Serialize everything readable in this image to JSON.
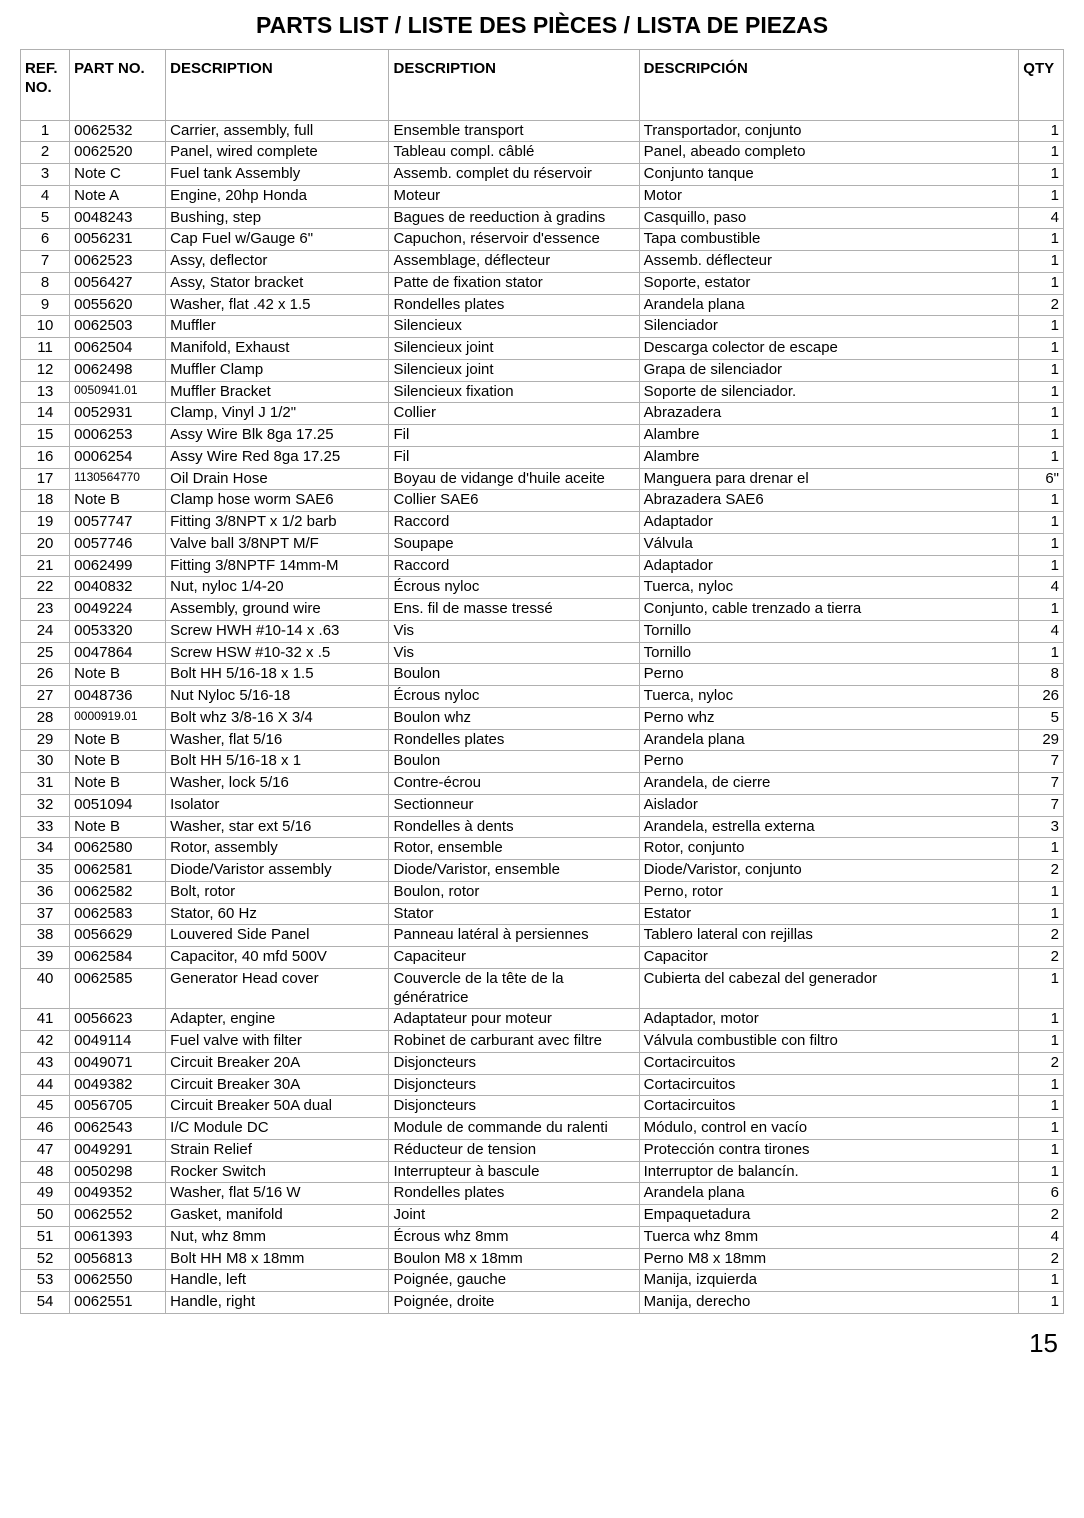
{
  "title": "PARTS LIST / LISTE DES PIÈCES / LISTA DE PIEZAS",
  "page_number": "15",
  "columns": [
    "REF. NO.",
    "PART NO.",
    "DESCRIPTION",
    "DESCRIPTION",
    "DESCRIPCIÓN",
    "QTY"
  ],
  "rows": [
    {
      "ref": "1",
      "part": "0062532",
      "d1": "Carrier, assembly, full",
      "d2": "Ensemble transport",
      "d3": "Transportador, conjunto",
      "qty": "1"
    },
    {
      "ref": "2",
      "part": "0062520",
      "d1": "Panel, wired complete",
      "d2": "Tableau compl. câblé",
      "d3": "Panel, abeado completo",
      "qty": "1"
    },
    {
      "ref": "3",
      "part": "Note C",
      "d1": "Fuel tank Assembly",
      "d2": "Assemb. complet du réservoir",
      "d3": "Conjunto tanque",
      "qty": "1"
    },
    {
      "ref": "4",
      "part": "Note A",
      "d1": "Engine, 20hp Honda",
      "d2": "Moteur",
      "d3": "Motor",
      "qty": "1"
    },
    {
      "ref": "5",
      "part": "0048243",
      "d1": "Bushing, step",
      "d2": "Bagues de reeduction à gradins",
      "d3": "Casquillo, paso",
      "qty": "4"
    },
    {
      "ref": "6",
      "part": "0056231",
      "d1": "Cap Fuel w/Gauge 6\"",
      "d2": "Capuchon, réservoir d'essence",
      "d3": "Tapa combustible",
      "qty": "1"
    },
    {
      "ref": "7",
      "part": "0062523",
      "d1": "Assy, deflector",
      "d2": "Assemblage, déflecteur",
      "d3": "Assemb. déflecteur",
      "qty": "1"
    },
    {
      "ref": "8",
      "part": "0056427",
      "d1": "Assy, Stator bracket",
      "d2": "Patte de fixation stator",
      "d3": "Soporte, estator",
      "qty": "1"
    },
    {
      "ref": "9",
      "part": "0055620",
      "d1": "Washer, flat .42 x 1.5",
      "d2": "Rondelles plates",
      "d3": "Arandela plana",
      "qty": "2"
    },
    {
      "ref": "10",
      "part": "0062503",
      "d1": "Muffler",
      "d2": "Silencieux",
      "d3": "Silenciador",
      "qty": "1"
    },
    {
      "ref": "11",
      "part": "0062504",
      "d1": "Manifold, Exhaust",
      "d2": "Silencieux joint",
      "d3": "Descarga colector de escape",
      "qty": "1"
    },
    {
      "ref": "12",
      "part": "0062498",
      "d1": "Muffler Clamp",
      "d2": "Silencieux joint",
      "d3": "Grapa de silenciador",
      "qty": "1"
    },
    {
      "ref": "13",
      "part": "0050941.01",
      "part_small": true,
      "d1": "Muffler Bracket",
      "d2": "Silencieux fixation",
      "d3": "Soporte de silenciador.",
      "qty": "1"
    },
    {
      "ref": "14",
      "part": "0052931",
      "d1": "Clamp, Vinyl J 1/2\"",
      "d2": "Collier",
      "d3": "Abrazadera",
      "qty": "1"
    },
    {
      "ref": "15",
      "part": "0006253",
      "d1": "Assy Wire Blk 8ga 17.25",
      "d2": "Fil",
      "d3": "Alambre",
      "qty": "1"
    },
    {
      "ref": "16",
      "part": "0006254",
      "d1": "Assy Wire Red 8ga 17.25",
      "d2": "Fil",
      "d3": "Alambre",
      "qty": "1"
    },
    {
      "ref": "17",
      "part": "1130564770",
      "part_small": true,
      "d1": "Oil Drain Hose",
      "d2": "Boyau de vidange d'huile aceite",
      "d3": "Manguera para drenar el",
      "qty": "6\""
    },
    {
      "ref": "18",
      "part": "Note B",
      "d1": "Clamp hose worm SAE6",
      "d2": "Collier SAE6",
      "d3": "Abrazadera SAE6",
      "qty": "1"
    },
    {
      "ref": "19",
      "part": "0057747",
      "d1": "Fitting 3/8NPT x 1/2 barb",
      "d2": "Raccord",
      "d3": "Adaptador",
      "qty": "1"
    },
    {
      "ref": "20",
      "part": "0057746",
      "d1": "Valve ball 3/8NPT M/F",
      "d2": "Soupape",
      "d3": "Válvula",
      "qty": "1"
    },
    {
      "ref": "21",
      "part": "0062499",
      "d1": "Fitting 3/8NPTF 14mm-M",
      "d2": "Raccord",
      "d3": "Adaptador",
      "qty": "1"
    },
    {
      "ref": "22",
      "part": "0040832",
      "d1": "Nut, nyloc 1/4-20",
      "d2": "Écrous nyloc",
      "d3": "Tuerca, nyloc",
      "qty": "4"
    },
    {
      "ref": "23",
      "part": "0049224",
      "d1": "Assembly, ground wire",
      "d2": "Ens. fil de masse tressé",
      "d3": "Conjunto, cable trenzado a tierra",
      "qty": "1"
    },
    {
      "ref": "24",
      "part": "0053320",
      "d1": "Screw HWH #10-14 x .63",
      "d2": "Vis",
      "d3": "Tornillo",
      "qty": "4"
    },
    {
      "ref": "25",
      "part": "0047864",
      "d1": "Screw HSW #10-32 x .5",
      "d2": "Vis",
      "d3": "Tornillo",
      "qty": "1"
    },
    {
      "ref": "26",
      "part": "Note B",
      "d1": "Bolt HH 5/16-18 x 1.5",
      "d2": "Boulon",
      "d3": "Perno",
      "qty": "8"
    },
    {
      "ref": "27",
      "part": "0048736",
      "d1": "Nut Nyloc 5/16-18",
      "d2": "Écrous nyloc",
      "d3": "Tuerca, nyloc",
      "qty": "26"
    },
    {
      "ref": "28",
      "part": "0000919.01",
      "part_small": true,
      "d1": "Bolt whz 3/8-16 X 3/4",
      "d2": "Boulon whz",
      "d3": "Perno whz",
      "qty": "5"
    },
    {
      "ref": "29",
      "part": "Note B",
      "d1": "Washer, flat 5/16",
      "d2": "Rondelles plates",
      "d3": "Arandela plana",
      "qty": "29"
    },
    {
      "ref": "30",
      "part": "Note B",
      "d1": "Bolt HH 5/16-18 x 1",
      "d2": "Boulon",
      "d3": "Perno",
      "qty": "7"
    },
    {
      "ref": "31",
      "part": "Note B",
      "d1": "Washer, lock 5/16",
      "d2": "Contre-écrou",
      "d3": "Arandela, de cierre",
      "qty": "7"
    },
    {
      "ref": "32",
      "part": "0051094",
      "d1": "Isolator",
      "d2": "Sectionneur",
      "d3": "Aislador",
      "qty": "7"
    },
    {
      "ref": "33",
      "part": "Note B",
      "d1": "Washer, star ext 5/16",
      "d2": "Rondelles à dents",
      "d3": "Arandela, estrella externa",
      "qty": "3"
    },
    {
      "ref": "34",
      "part": "0062580",
      "d1": "Rotor, assembly",
      "d2": "Rotor, ensemble",
      "d3": "Rotor, conjunto",
      "qty": "1"
    },
    {
      "ref": "35",
      "part": "0062581",
      "d1": "Diode/Varistor assembly",
      "d2": "Diode/Varistor, ensemble",
      "d3": "Diode/Varistor, conjunto",
      "qty": "2"
    },
    {
      "ref": "36",
      "part": "0062582",
      "d1": "Bolt, rotor",
      "d2": "Boulon, rotor",
      "d3": "Perno, rotor",
      "qty": "1"
    },
    {
      "ref": "37",
      "part": "0062583",
      "d1": "Stator, 60 Hz",
      "d2": "Stator",
      "d3": "Estator",
      "qty": "1"
    },
    {
      "ref": "38",
      "part": "0056629",
      "d1": "Louvered Side Panel",
      "d2": "Panneau latéral à persiennes",
      "d3": "Tablero lateral con rejillas",
      "qty": "2"
    },
    {
      "ref": "39",
      "part": "0062584",
      "d1": "Capacitor, 40 mfd 500V",
      "d2": "Capaciteur",
      "d3": "Capacitor",
      "qty": "2"
    },
    {
      "ref": "40",
      "part": "0062585",
      "d1": "Generator Head cover",
      "d2": "Couvercle de la tête de la génératrice",
      "d3": "Cubierta del cabezal del generador",
      "qty": "1"
    },
    {
      "ref": "41",
      "part": "0056623",
      "d1": "Adapter, engine",
      "d2": "Adaptateur pour moteur",
      "d3": "Adaptador, motor",
      "qty": "1"
    },
    {
      "ref": "42",
      "part": "0049114",
      "d1": "Fuel valve with filter",
      "d2": "Robinet de carburant avec filtre",
      "d3": "Válvula combustible con filtro",
      "qty": "1"
    },
    {
      "ref": "43",
      "part": "0049071",
      "d1": "Circuit Breaker 20A",
      "d2": "Disjoncteurs",
      "d3": "Cortacircuitos",
      "qty": "2"
    },
    {
      "ref": "44",
      "part": "0049382",
      "d1": "Circuit Breaker 30A",
      "d2": "Disjoncteurs",
      "d3": "Cortacircuitos",
      "qty": "1"
    },
    {
      "ref": "45",
      "part": "0056705",
      "d1": "Circuit Breaker 50A dual",
      "d2": "Disjoncteurs",
      "d3": "Cortacircuitos",
      "qty": "1"
    },
    {
      "ref": "46",
      "part": "0062543",
      "d1": "I/C Module DC",
      "d2": "Module de commande du ralenti",
      "d3": "Módulo, control en vacío",
      "qty": "1"
    },
    {
      "ref": "47",
      "part": "0049291",
      "d1": "Strain Relief",
      "d2": "Réducteur de tension",
      "d3": "Protección contra tirones",
      "qty": "1"
    },
    {
      "ref": "48",
      "part": "0050298",
      "d1": "Rocker Switch",
      "d2": "Interrupteur à bascule",
      "d3": "Interruptor de balancín.",
      "qty": "1"
    },
    {
      "ref": "49",
      "part": "0049352",
      "d1": "Washer, flat 5/16 W",
      "d2": "Rondelles plates",
      "d3": "Arandela plana",
      "qty": "6"
    },
    {
      "ref": "50",
      "part": "0062552",
      "d1": "Gasket, manifold",
      "d2": "Joint",
      "d3": "Empaquetadura",
      "qty": "2"
    },
    {
      "ref": "51",
      "part": "0061393",
      "d1": "Nut, whz 8mm",
      "d2": "Écrous whz 8mm",
      "d3": "Tuerca whz 8mm",
      "qty": "4"
    },
    {
      "ref": "52",
      "part": "0056813",
      "d1": "Bolt HH M8 x 18mm",
      "d2": "Boulon M8 x 18mm",
      "d3": "Perno M8 x 18mm",
      "qty": "2"
    },
    {
      "ref": "53",
      "part": "0062550",
      "d1": "Handle, left",
      "d2": "Poignée, gauche",
      "d3": "Manija, izquierda",
      "qty": "1"
    },
    {
      "ref": "54",
      "part": "0062551",
      "d1": "Handle, right",
      "d2": "Poignée, droite",
      "d3": "Manija, derecho",
      "qty": "1"
    }
  ]
}
